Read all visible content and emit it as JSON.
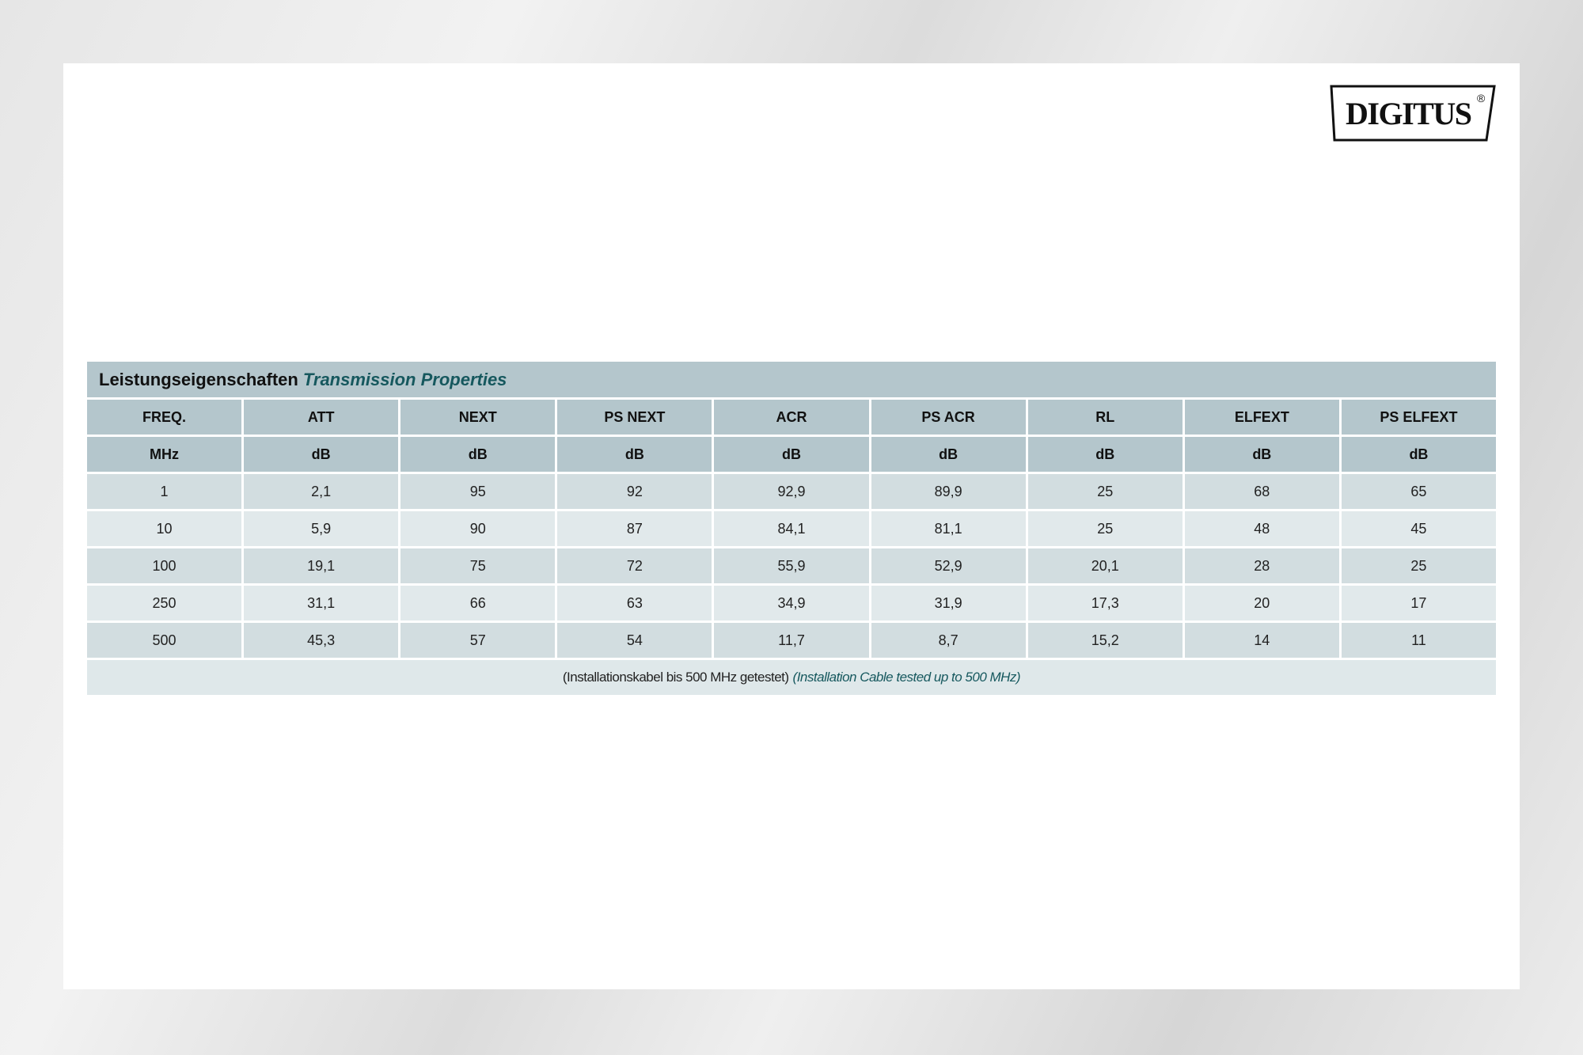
{
  "logo": {
    "text": "DIGITUS",
    "mark": "®"
  },
  "table": {
    "title_de": "Leistungseigenschaften",
    "title_en": "Transmission Properties",
    "headers": [
      "FREQ.",
      "ATT",
      "NEXT",
      "PS NEXT",
      "ACR",
      "PS ACR",
      "RL",
      "ELFEXT",
      "PS ELFEXT"
    ],
    "units": [
      "MHz",
      "dB",
      "dB",
      "dB",
      "dB",
      "dB",
      "dB",
      "dB",
      "dB"
    ],
    "rows": [
      [
        "1",
        "2,1",
        "95",
        "92",
        "92,9",
        "89,9",
        "25",
        "68",
        "65"
      ],
      [
        "10",
        "5,9",
        "90",
        "87",
        "84,1",
        "81,1",
        "25",
        "48",
        "45"
      ],
      [
        "100",
        "19,1",
        "75",
        "72",
        "55,9",
        "52,9",
        "20,1",
        "28",
        "25"
      ],
      [
        "250",
        "31,1",
        "66",
        "63",
        "34,9",
        "31,9",
        "17,3",
        "20",
        "17"
      ],
      [
        "500",
        "45,3",
        "57",
        "54",
        "11,7",
        "8,7",
        "15,2",
        "14",
        "11"
      ]
    ],
    "footnote_de": "(Installationskabel bis 500 MHz getestet)",
    "footnote_en": "(Installation Cable tested up to 500 MHz)"
  },
  "colors": {
    "header_bg": "#b4c6cc",
    "accent_text": "#16585e",
    "row_dark": "#d2dde0",
    "row_light": "#e1e9eb"
  }
}
